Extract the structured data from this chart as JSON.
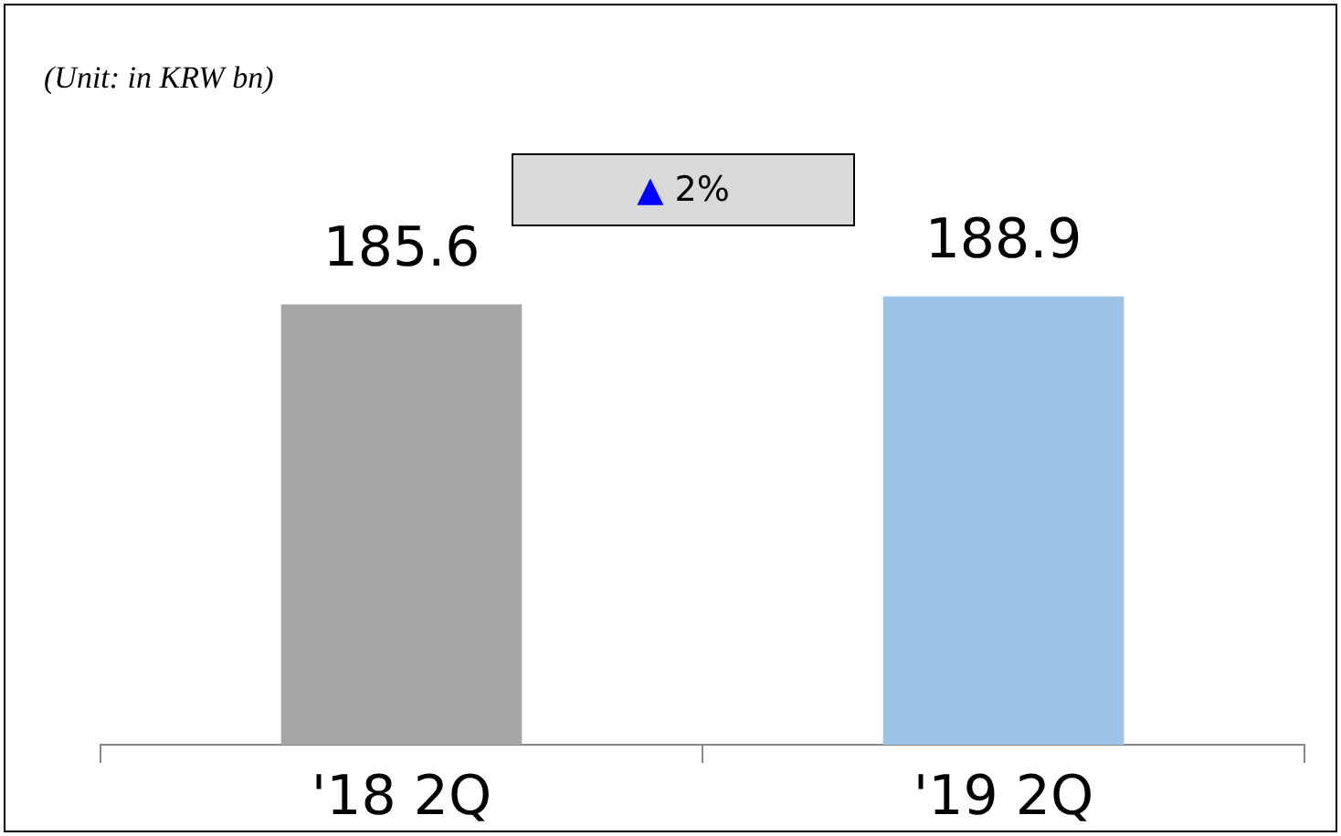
{
  "chart_data": {
    "type": "bar",
    "categories": [
      "'18 2Q",
      "'19 2Q"
    ],
    "values": [
      185.6,
      188.9
    ],
    "colors": [
      "#a6a6a6",
      "#9dc3e6"
    ],
    "tick_labels": "x",
    "data_labels": true,
    "grid": false,
    "legend": false,
    "annotations": [
      "(Unit: in KRW bn)",
      "▲ 2%"
    ]
  }
}
